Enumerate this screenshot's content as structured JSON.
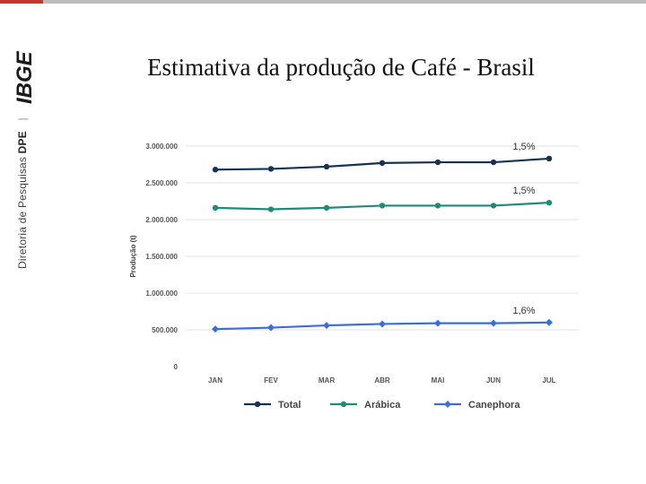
{
  "page": {
    "title": "Estimativa da produção de Café - Brasil",
    "side_caption": {
      "prefix": "Diretoria de Pesquisas",
      "bold": "DPE",
      "separator": "|"
    },
    "logo_text": "IBGE"
  },
  "colors": {
    "accent": "#c0392b",
    "total": "#16324f",
    "arabica": "#1e8a7a",
    "canephora": "#3b6fd8",
    "grid": "#e3e3e3"
  },
  "chart_data": {
    "type": "line",
    "categories": [
      "JAN",
      "FEV",
      "MAR",
      "ABR",
      "MAI",
      "JUN",
      "JUL"
    ],
    "series": [
      {
        "name": "Total",
        "values": [
          2680000,
          2690000,
          2720000,
          2770000,
          2780000,
          2780000,
          2830000
        ],
        "end_label": "1,5%"
      },
      {
        "name": "Arábica",
        "values": [
          2160000,
          2140000,
          2160000,
          2190000,
          2190000,
          2190000,
          2230000
        ],
        "end_label": "1,5%"
      },
      {
        "name": "Canephora",
        "values": [
          510000,
          530000,
          560000,
          580000,
          590000,
          590000,
          600000
        ],
        "end_label": "1,6%"
      }
    ],
    "yticks": [
      "0",
      "500.000",
      "1.000.000",
      "1.500.000",
      "2.000.000",
      "2.500.000",
      "3.000.000"
    ],
    "ylim": [
      0,
      3000000
    ],
    "ylabel": "Produção (t)",
    "xlabel": "",
    "grid": true,
    "legend_position": "bottom"
  }
}
